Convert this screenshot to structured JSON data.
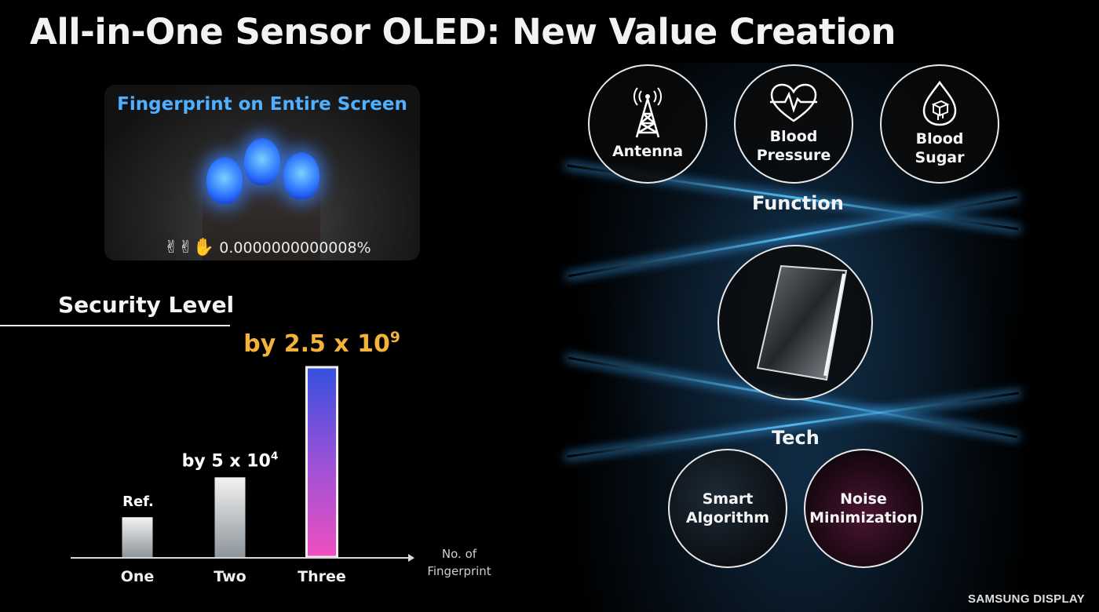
{
  "slide": {
    "title": "All-in-One Sensor OLED: New Value Creation",
    "brand": "SAMSUNG DISPLAY"
  },
  "fingerprint_card": {
    "title": "Fingerprint on Entire Screen",
    "value": "0.0000000000008%",
    "hand_glyphs": "✌✌✋"
  },
  "security": {
    "label": "Security Level"
  },
  "chart_data": {
    "type": "bar",
    "categories": [
      "One",
      "Two",
      "Three"
    ],
    "values": [
      1,
      50000,
      2500000000
    ],
    "display_heights_relative": [
      0.21,
      0.42,
      1.0
    ],
    "data_labels": [
      {
        "text": "Ref.",
        "sup": ""
      },
      {
        "text": "by 5 x 10",
        "sup": "4"
      },
      {
        "text": "by 2.5 x 10",
        "sup": "9"
      }
    ],
    "xlabel": "No. of Fingerprint",
    "ylabel": "",
    "label_colors": [
      "#ffffff",
      "#ffffff",
      "#f4b23a"
    ]
  },
  "function_section": {
    "label": "Function",
    "items": [
      {
        "label_lines": [
          "Antenna"
        ],
        "icon": "antenna-icon"
      },
      {
        "label_lines": [
          "Blood",
          "Pressure"
        ],
        "icon": "heart-pulse-icon"
      },
      {
        "label_lines": [
          "Blood",
          "Sugar"
        ],
        "icon": "sugar-drop-icon"
      }
    ]
  },
  "tech_section": {
    "label": "Tech",
    "items": [
      {
        "label_lines": [
          "Smart",
          "Algorithm"
        ]
      },
      {
        "label_lines": [
          "Noise",
          "Minimization"
        ]
      }
    ]
  }
}
